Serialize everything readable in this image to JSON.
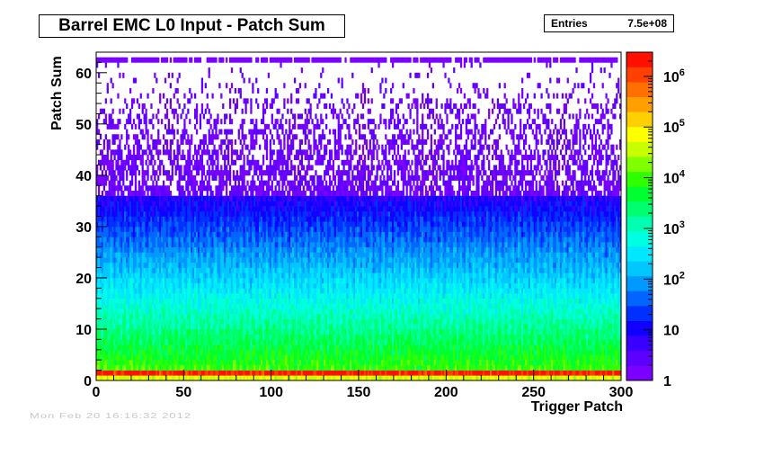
{
  "title": "Barrel EMC L0 Input - Patch Sum",
  "stats": {
    "label": "Entries",
    "value": "7.5e+08"
  },
  "footer_text": "Mon Feb 20 16:16:32 2012",
  "chart_data": {
    "type": "heatmap",
    "title": "Barrel EMC L0 Input - Patch Sum",
    "xlabel": "Trigger Patch",
    "ylabel": "Patch Sum",
    "xlim": [
      0,
      300
    ],
    "ylim": [
      0,
      64
    ],
    "x_ticks": [
      0,
      50,
      100,
      150,
      200,
      250,
      300
    ],
    "y_ticks": [
      0,
      10,
      20,
      30,
      40,
      50,
      60
    ],
    "z_scale": "log",
    "z_range": [
      1,
      3000000
    ],
    "colorbar_ticks": [
      {
        "value": 1,
        "label": "1"
      },
      {
        "value": 10,
        "label": "10"
      },
      {
        "value": 100,
        "label": "10",
        "exp": "2"
      },
      {
        "value": 1000,
        "label": "10",
        "exp": "3"
      },
      {
        "value": 10000,
        "label": "10",
        "exp": "4"
      },
      {
        "value": 100000,
        "label": "10",
        "exp": "5"
      },
      {
        "value": 1000000,
        "label": "10",
        "exp": "6"
      }
    ],
    "palette": [
      "#7a00ff",
      "#5c00ff",
      "#3a00ff",
      "#1000ff",
      "#0030ff",
      "#0066ff",
      "#0099ff",
      "#00c8ff",
      "#00e8ff",
      "#00ffe0",
      "#00ffb0",
      "#00ff70",
      "#00ff30",
      "#30ff00",
      "#80ff00",
      "#c8ff00",
      "#ffff00",
      "#ffd000",
      "#ffa000",
      "#ff7000",
      "#ff4000",
      "#ff1000"
    ],
    "bins_x": 300,
    "bins_y": 64,
    "profile_description_by_patch_sum": [
      {
        "y_range": [
          0,
          1
        ],
        "typical_count": 50000
      },
      {
        "y_range": [
          1,
          2
        ],
        "typical_count": 2000000
      },
      {
        "y_range": [
          2,
          6
        ],
        "typical_count": 8000
      },
      {
        "y_range": [
          6,
          15
        ],
        "typical_count": 2000
      },
      {
        "y_range": [
          15,
          25
        ],
        "typical_count": 150
      },
      {
        "y_range": [
          25,
          35
        ],
        "typical_count": 15
      },
      {
        "y_range": [
          35,
          45
        ],
        "typical_count": 2
      },
      {
        "y_range": [
          45,
          62
        ],
        "typical_count": 1
      },
      {
        "y_range": [
          62,
          63
        ],
        "typical_count": 1
      }
    ],
    "grid": false,
    "grid_note": "no gridlines; sparse white (empty) bins above ~40"
  }
}
